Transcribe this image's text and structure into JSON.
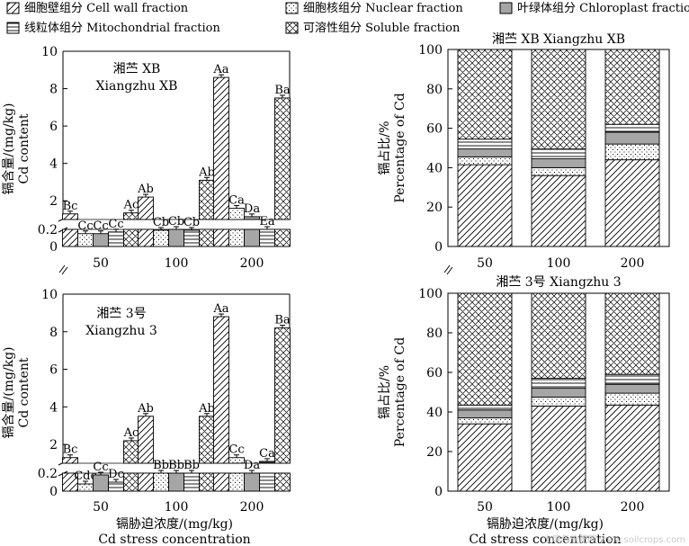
{
  "legend": [
    {
      "key": "cell_wall",
      "label": "细胞壁组分 Cell wall fraction",
      "pattern": "pat-wall"
    },
    {
      "key": "nuclear",
      "label": "细胞核组分 Nuclear fraction",
      "pattern": "pat-nuc"
    },
    {
      "key": "chloroplast",
      "label": "叶绿体组分 Chloroplast fraction",
      "pattern": "pat-chl"
    },
    {
      "key": "mito",
      "label": "线粒体组分 Mitochondrial fraction",
      "pattern": "pat-mito"
    },
    {
      "key": "soluble",
      "label": "可溶性组分 Soluble fraction",
      "pattern": "pat-sol"
    }
  ],
  "colors": {
    "chloroplast_fill": "#a6a6a6",
    "axis": "#000000"
  },
  "chart_data": [
    {
      "type": "bar",
      "panel": "top-left",
      "title": "湘苎 XB",
      "subtitle": "Xiangzhu XB",
      "ylabel": "镉含量/(mg/kg)",
      "ylabel2": "Cd content",
      "categories": [
        "50",
        "100",
        "200"
      ],
      "ylim": [
        0,
        10
      ],
      "broken_axis": [
        0.2,
        1
      ],
      "yticks": [
        "0",
        "0.2",
        "2",
        "4",
        "6",
        "8",
        "10"
      ],
      "series": [
        {
          "name": "Cell wall fraction",
          "values": [
            1.3,
            2.2,
            8.6
          ],
          "labels": [
            "Bc",
            "Ab",
            "Aa"
          ]
        },
        {
          "name": "Nuclear fraction",
          "values": [
            0.15,
            0.19,
            1.6
          ],
          "labels": [
            "Cc",
            "Cb",
            "Ca"
          ]
        },
        {
          "name": "Chloroplast fraction",
          "values": [
            0.15,
            0.2,
            1.15
          ],
          "labels": [
            "Cc",
            "Cb",
            "Da"
          ]
        },
        {
          "name": "Mitochondrial fraction",
          "values": [
            0.17,
            0.19,
            0.75
          ],
          "labels": [
            "Cc",
            "Cb",
            "Ea"
          ]
        },
        {
          "name": "Soluble fraction",
          "values": [
            1.35,
            3.1,
            7.5
          ],
          "labels": [
            "Ac",
            "Ab",
            "Ba"
          ]
        }
      ]
    },
    {
      "type": "bar",
      "panel": "top-right",
      "stacked": true,
      "title": "湘苎 XB Xiangzhu XB",
      "ylabel": "镉占比/%",
      "ylabel2": "Percentage of Cd",
      "categories": [
        "50",
        "100",
        "200"
      ],
      "ylim": [
        0,
        100
      ],
      "yticks": [
        "0",
        "20",
        "40",
        "60",
        "80",
        "100"
      ],
      "series": [
        {
          "name": "Cell wall fraction",
          "values": [
            41.5,
            36,
            44
          ]
        },
        {
          "name": "Nuclear fraction",
          "values": [
            4,
            4,
            8
          ]
        },
        {
          "name": "Chloroplast fraction",
          "values": [
            4,
            4.5,
            6
          ]
        },
        {
          "name": "Mitochondrial fraction",
          "values": [
            5,
            5,
            4
          ]
        },
        {
          "name": "Soluble fraction",
          "values": [
            45.5,
            50.5,
            38
          ]
        }
      ]
    },
    {
      "type": "bar",
      "panel": "bottom-left",
      "title": "湘苎 3号",
      "subtitle": "Xiangzhu 3",
      "ylabel": "镉含量/(mg/kg)",
      "ylabel2": "Cd content",
      "categories": [
        "50",
        "100",
        "200"
      ],
      "ylim": [
        0,
        10
      ],
      "broken_axis": [
        0.2,
        1
      ],
      "yticks": [
        "0",
        "0.2",
        "2",
        "4",
        "6",
        "8",
        "10"
      ],
      "series": [
        {
          "name": "Cell wall fraction",
          "values": [
            1.3,
            3.5,
            8.8
          ],
          "labels": [
            "Bc",
            "Ab",
            "Aa"
          ]
        },
        {
          "name": "Nuclear fraction",
          "values": [
            0.08,
            0.2,
            1.3
          ],
          "labels": [
            "Cdc",
            "Bb",
            "Cc"
          ]
        },
        {
          "name": "Chloroplast fraction",
          "values": [
            0.18,
            0.2,
            0.8
          ],
          "labels": [
            "Cc",
            "Bb",
            "Da"
          ]
        },
        {
          "name": "Mitochondrial fraction",
          "values": [
            0.1,
            0.2,
            1.1
          ],
          "labels": [
            "Dc",
            "Bb",
            "Ca"
          ]
        },
        {
          "name": "Soluble fraction",
          "values": [
            2.2,
            3.5,
            8.2
          ],
          "labels": [
            "Ac",
            "Ab",
            "Ba"
          ]
        }
      ]
    },
    {
      "type": "bar",
      "panel": "bottom-right",
      "stacked": true,
      "title": "湘苎 3号 Xiangzhu 3",
      "ylabel": "镉占比/%",
      "ylabel2": "Percentage of Cd",
      "categories": [
        "50",
        "100",
        "200"
      ],
      "ylim": [
        0,
        100
      ],
      "yticks": [
        "0",
        "20",
        "40",
        "60",
        "80",
        "100"
      ],
      "series": [
        {
          "name": "Cell wall fraction",
          "values": [
            34,
            43,
            43.5
          ]
        },
        {
          "name": "Nuclear fraction",
          "values": [
            3,
            4.5,
            6
          ]
        },
        {
          "name": "Chloroplast fraction",
          "values": [
            4,
            4.5,
            4.5
          ]
        },
        {
          "name": "Mitochondrial fraction",
          "values": [
            2.5,
            5,
            5
          ]
        },
        {
          "name": "Soluble fraction",
          "values": [
            56.5,
            43,
            41
          ]
        }
      ]
    }
  ],
  "xlabel": "镉胁迫浓度/(mg/kg)",
  "xlabel2": "Cd stress concentration",
  "watermark": "土壤与施肥网 www.soilcrops.com"
}
